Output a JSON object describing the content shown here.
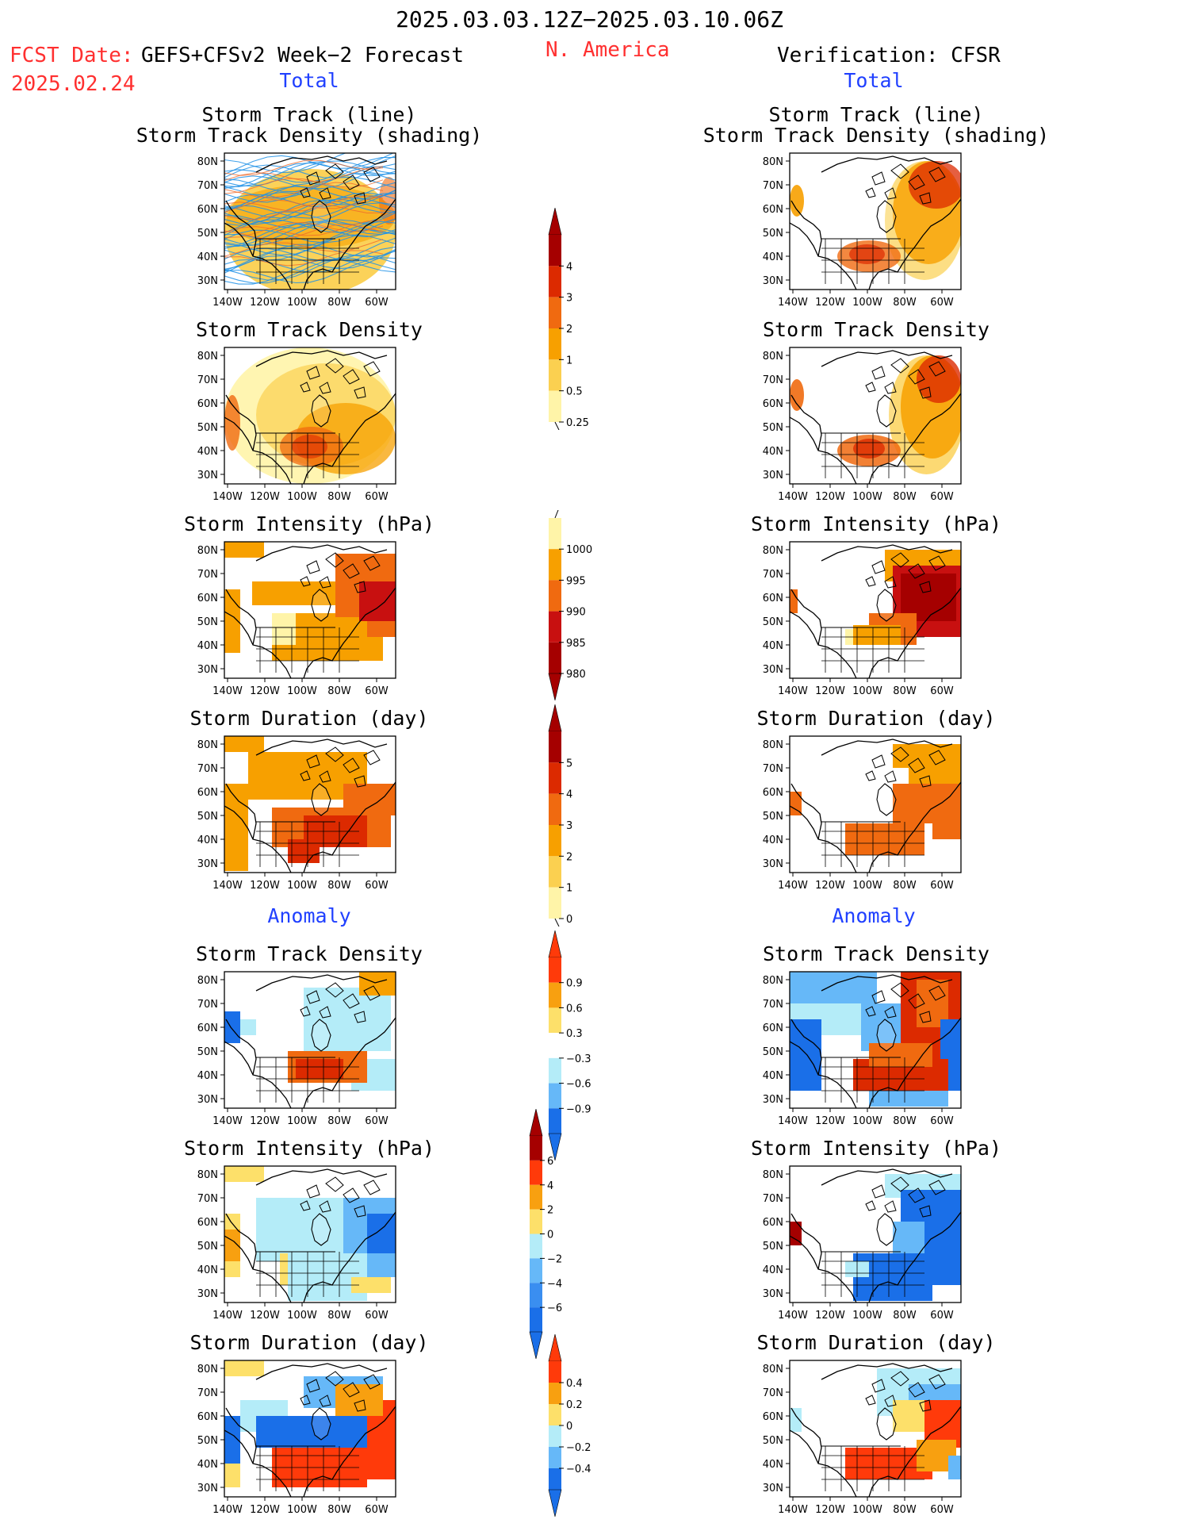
{
  "header": {
    "period": "2025.03.03.12Z−2025.03.10.06Z",
    "fcst_label": "FCST Date:",
    "fcst_date": "2025.02.24",
    "model": "GEFS+CFSv2 Week−2 Forecast",
    "region": "N. America",
    "verification": "Verification: CFSR"
  },
  "sections": {
    "total": "Total",
    "anomaly": "Anomaly"
  },
  "axes": {
    "lat_ticks": [
      "80N",
      "70N",
      "60N",
      "50N",
      "40N",
      "30N"
    ],
    "lon_ticks": [
      "140W",
      "120W",
      "100W",
      "80W",
      "60W"
    ]
  },
  "panels": {
    "track": {
      "title_line1": "Storm Track (line)",
      "title_line2": "Storm Track Density (shading)"
    },
    "density": {
      "title": "Storm Track Density"
    },
    "intensity": {
      "title": "Storm Intensity (hPa)"
    },
    "duration": {
      "title": "Storm Duration (day)"
    }
  },
  "colorbars": {
    "total_density": {
      "labels": [
        "4",
        "3",
        "2",
        "1",
        "0.5",
        "0.25"
      ],
      "colors": [
        "#a50000",
        "#dc2a00",
        "#f06a10",
        "#f7a000",
        "#fbd050",
        "#fff4a8"
      ]
    },
    "total_intensity": {
      "labels": [
        "1000",
        "995",
        "990",
        "985",
        "980"
      ],
      "colors": [
        "#fff4a8",
        "#f7a000",
        "#f06a10",
        "#c81010",
        "#a50000"
      ]
    },
    "total_duration": {
      "labels": [
        "5",
        "4",
        "3",
        "2",
        "1",
        "0"
      ],
      "colors": [
        "#a50000",
        "#dc2a00",
        "#f06a10",
        "#f7a000",
        "#fbd050",
        "#fff4a8"
      ]
    },
    "anom_density": {
      "labels": [
        "0.9",
        "0.6",
        "0.3",
        "−0.3",
        "−0.6",
        "−0.9"
      ],
      "colors": [
        "#ff3a0a",
        "#f8a010",
        "#fde06a",
        "#ffffff",
        "#b4ecf8",
        "#66b8f8",
        "#1a6fe8"
      ]
    },
    "anom_intensity": {
      "labels": [
        "6",
        "4",
        "2",
        "0",
        "−2",
        "−4",
        "−6"
      ],
      "colors": [
        "#a50000",
        "#ff3a0a",
        "#f8a010",
        "#fde06a",
        "#b4ecf8",
        "#66b8f8",
        "#3a8ef0",
        "#1a6fe8"
      ]
    },
    "anom_duration": {
      "labels": [
        "0.4",
        "0.2",
        "0",
        "−0.2",
        "−0.4"
      ],
      "colors": [
        "#ff3a0a",
        "#f8a010",
        "#fde06a",
        "#b4ecf8",
        "#66b8f8",
        "#1a6fe8"
      ]
    }
  },
  "colors": {
    "yellow": "#fff4a8",
    "light_orange": "#fbd050",
    "orange": "#f7a000",
    "dark_orange": "#f06a10",
    "red": "#dc2a00",
    "dark_red": "#a50000",
    "light_blue": "#b4ecf8",
    "mid_blue": "#66b8f8",
    "blue": "#1a6fe8",
    "track_line": "#1e90e6"
  }
}
